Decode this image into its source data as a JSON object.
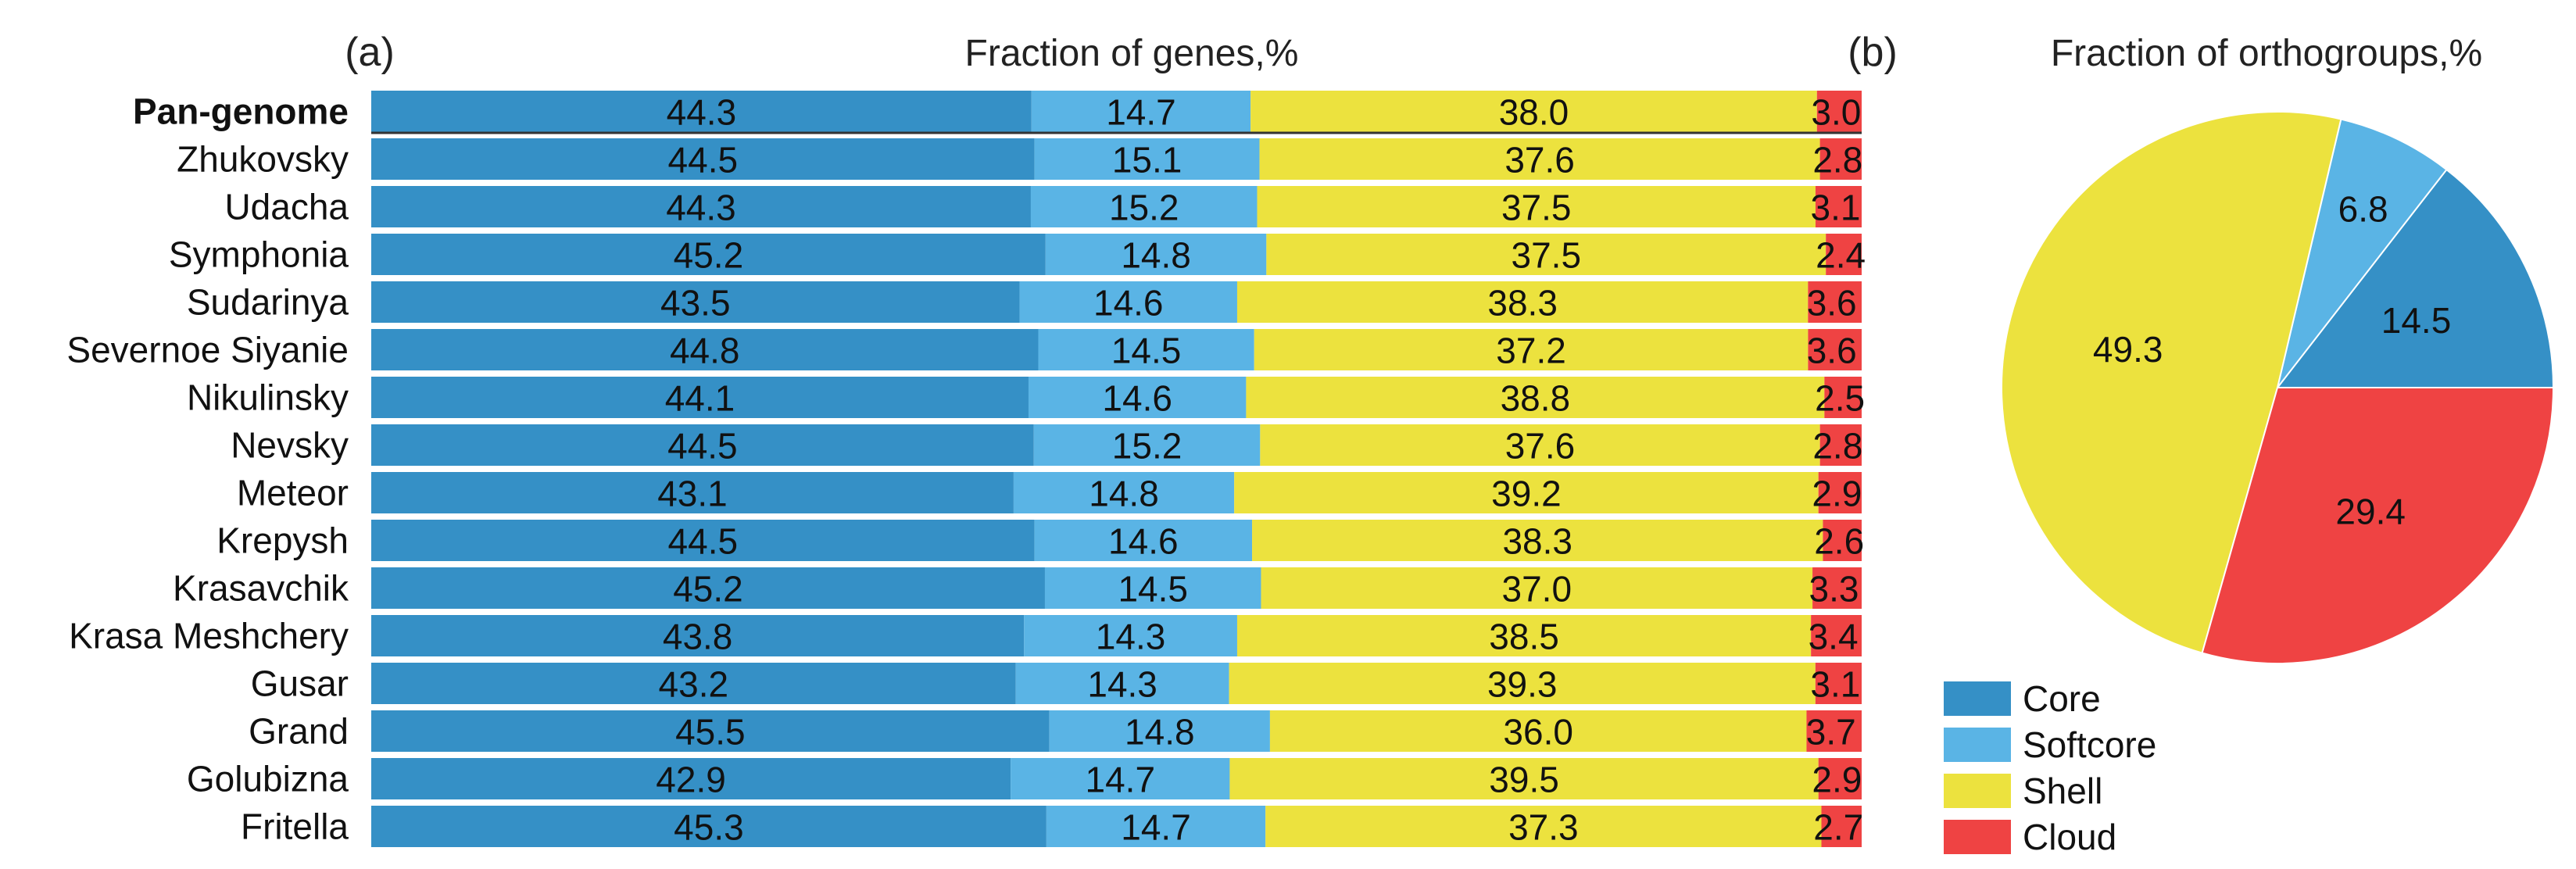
{
  "colors": {
    "core": "#3590c6",
    "softcore": "#5ab4e5",
    "shell": "#ece23e",
    "cloud": "#ef4343"
  },
  "chart_data": [
    {
      "type": "bar",
      "stacked": true,
      "orientation": "horizontal",
      "panel_label": "(a)",
      "title": "Fraction of genes,%",
      "xlim": [
        0,
        100
      ],
      "categories": [
        "Pan-genome",
        "Zhukovsky",
        "Udacha",
        "Symphonia",
        "Sudarinya",
        "Severnoe Siyanie",
        "Nikulinsky",
        "Nevsky",
        "Meteor",
        "Krepysh",
        "Krasavchik",
        "Krasa Meshchery",
        "Gusar",
        "Grand",
        "Golubizna",
        "Fritella"
      ],
      "series": [
        {
          "name": "Core",
          "values": [
            "44.3",
            "44.5",
            "44.3",
            "45.2",
            "43.5",
            "44.8",
            "44.1",
            "44.5",
            "43.1",
            "44.5",
            "45.2",
            "43.8",
            "43.2",
            "45.5",
            "42.9",
            "45.3"
          ]
        },
        {
          "name": "Softcore",
          "values": [
            "14.7",
            "15.1",
            "15.2",
            "14.8",
            "14.6",
            "14.5",
            "14.6",
            "15.2",
            "14.8",
            "14.6",
            "14.5",
            "14.3",
            "14.3",
            "14.8",
            "14.7",
            "14.7"
          ]
        },
        {
          "name": "Shell",
          "values": [
            "38.0",
            "37.6",
            "37.5",
            "37.5",
            "38.3",
            "37.2",
            "38.8",
            "37.6",
            "39.2",
            "38.3",
            "37.0",
            "38.5",
            "39.3",
            "36.0",
            "39.5",
            "37.3"
          ]
        },
        {
          "name": "Cloud",
          "values": [
            "3.0",
            "2.8",
            "3.1",
            "2.4",
            "3.6",
            "3.6",
            "2.5",
            "2.8",
            "2.9",
            "2.6",
            "3.3",
            "3.4",
            "3.1",
            "3.7",
            "2.9",
            "2.7"
          ]
        }
      ]
    },
    {
      "type": "pie",
      "panel_label": "(b)",
      "title": "Fraction of orthogroups,%",
      "categories": [
        "Core",
        "Softcore",
        "Shell",
        "Cloud"
      ],
      "values": [
        "14.5",
        "6.8",
        "49.3",
        "29.4"
      ]
    }
  ],
  "legend": {
    "items": [
      "Core",
      "Softcore",
      "Shell",
      "Cloud"
    ]
  }
}
